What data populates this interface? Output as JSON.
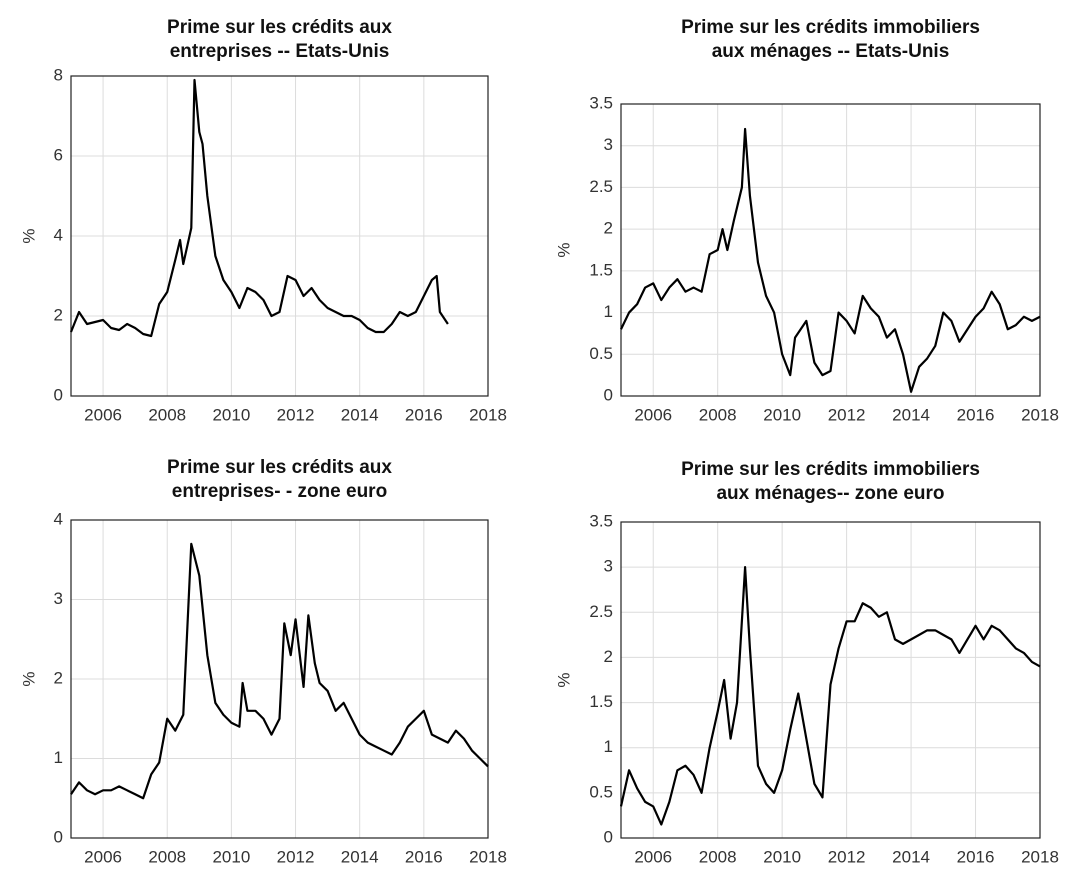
{
  "chart_data": [
    {
      "type": "line",
      "title": [
        "Prime sur les crédits aux",
        "entreprises -- Etats-Unis"
      ],
      "ylabel": "%",
      "color": "#000000",
      "grid": true,
      "xlim": [
        2005,
        2018
      ],
      "xticks": [
        2006,
        2008,
        2010,
        2012,
        2014,
        2016,
        2018
      ],
      "ylim": [
        0,
        8
      ],
      "yticks": [
        0,
        2,
        4,
        6,
        8
      ],
      "x": [
        2005,
        2005.25,
        2005.5,
        2005.75,
        2006,
        2006.25,
        2006.5,
        2006.75,
        2007,
        2007.25,
        2007.5,
        2007.75,
        2008,
        2008.25,
        2008.4,
        2008.5,
        2008.75,
        2008.85,
        2009,
        2009.1,
        2009.25,
        2009.5,
        2009.75,
        2010,
        2010.25,
        2010.5,
        2010.75,
        2011,
        2011.25,
        2011.5,
        2011.75,
        2012,
        2012.25,
        2012.5,
        2012.75,
        2013,
        2013.25,
        2013.5,
        2013.75,
        2014,
        2014.25,
        2014.5,
        2014.75,
        2015,
        2015.25,
        2015.5,
        2015.75,
        2016,
        2016.25,
        2016.4,
        2016.5,
        2016.75
      ],
      "values": [
        1.6,
        2.1,
        1.8,
        1.85,
        1.9,
        1.7,
        1.65,
        1.8,
        1.7,
        1.55,
        1.5,
        2.3,
        2.6,
        3.4,
        3.9,
        3.3,
        4.2,
        7.9,
        6.6,
        6.3,
        5.0,
        3.5,
        2.9,
        2.6,
        2.2,
        2.7,
        2.6,
        2.4,
        2.0,
        2.1,
        3.0,
        2.9,
        2.5,
        2.7,
        2.4,
        2.2,
        2.1,
        2.0,
        2.0,
        1.9,
        1.7,
        1.6,
        1.6,
        1.8,
        2.1,
        2.0,
        2.1,
        2.5,
        2.9,
        3.0,
        2.1,
        1.8
      ]
    },
    {
      "type": "line",
      "title": [
        "Prime sur les crédits immobiliers",
        "aux ménages -- Etats-Unis"
      ],
      "ylabel": "%",
      "color": "#000000",
      "grid": true,
      "xlim": [
        2005,
        2018
      ],
      "xticks": [
        2006,
        2008,
        2010,
        2012,
        2014,
        2016,
        2018
      ],
      "ylim": [
        0,
        3.5
      ],
      "yticks": [
        0,
        0.5,
        1,
        1.5,
        2,
        2.5,
        3,
        3.5
      ],
      "x": [
        2005,
        2005.25,
        2005.5,
        2005.75,
        2006,
        2006.25,
        2006.5,
        2006.75,
        2007,
        2007.25,
        2007.5,
        2007.75,
        2008,
        2008.15,
        2008.3,
        2008.5,
        2008.75,
        2008.85,
        2009,
        2009.25,
        2009.5,
        2009.75,
        2010,
        2010.25,
        2010.4,
        2010.75,
        2011,
        2011.25,
        2011.5,
        2011.75,
        2012,
        2012.25,
        2012.5,
        2012.75,
        2013,
        2013.25,
        2013.5,
        2013.75,
        2014,
        2014.25,
        2014.5,
        2014.75,
        2015,
        2015.25,
        2015.5,
        2015.75,
        2016,
        2016.25,
        2016.5,
        2016.75,
        2017,
        2017.25,
        2017.5,
        2017.75,
        2018
      ],
      "values": [
        0.8,
        1.0,
        1.1,
        1.3,
        1.35,
        1.15,
        1.3,
        1.4,
        1.25,
        1.3,
        1.25,
        1.7,
        1.75,
        2.0,
        1.75,
        2.1,
        2.5,
        3.2,
        2.4,
        1.6,
        1.2,
        1.0,
        0.5,
        0.25,
        0.7,
        0.9,
        0.4,
        0.25,
        0.3,
        1.0,
        0.9,
        0.75,
        1.2,
        1.05,
        0.95,
        0.7,
        0.8,
        0.5,
        0.05,
        0.35,
        0.45,
        0.6,
        1.0,
        0.9,
        0.65,
        0.8,
        0.95,
        1.05,
        1.25,
        1.1,
        0.8,
        0.85,
        0.95,
        0.9,
        0.95
      ]
    },
    {
      "type": "line",
      "title": [
        "Prime sur les crédits aux",
        "entreprises- - zone euro"
      ],
      "ylabel": "%",
      "color": "#000000",
      "grid": true,
      "xlim": [
        2005,
        2018
      ],
      "xticks": [
        2006,
        2008,
        2010,
        2012,
        2014,
        2016,
        2018
      ],
      "ylim": [
        0,
        4
      ],
      "yticks": [
        0,
        1,
        2,
        3,
        4
      ],
      "x": [
        2005,
        2005.25,
        2005.5,
        2005.75,
        2006,
        2006.25,
        2006.5,
        2006.75,
        2007,
        2007.25,
        2007.5,
        2007.75,
        2008,
        2008.25,
        2008.5,
        2008.75,
        2009,
        2009.25,
        2009.5,
        2009.75,
        2010,
        2010.25,
        2010.35,
        2010.5,
        2010.75,
        2011,
        2011.25,
        2011.5,
        2011.65,
        2011.85,
        2012,
        2012.25,
        2012.4,
        2012.6,
        2012.75,
        2013,
        2013.25,
        2013.5,
        2013.75,
        2014,
        2014.25,
        2014.5,
        2014.75,
        2015,
        2015.25,
        2015.5,
        2015.75,
        2016,
        2016.25,
        2016.5,
        2016.75,
        2017,
        2017.25,
        2017.5,
        2017.75,
        2018
      ],
      "values": [
        0.55,
        0.7,
        0.6,
        0.55,
        0.6,
        0.6,
        0.65,
        0.6,
        0.55,
        0.5,
        0.8,
        0.95,
        1.5,
        1.35,
        1.55,
        3.7,
        3.3,
        2.3,
        1.7,
        1.55,
        1.45,
        1.4,
        1.95,
        1.6,
        1.6,
        1.5,
        1.3,
        1.5,
        2.7,
        2.3,
        2.75,
        1.9,
        2.8,
        2.2,
        1.95,
        1.85,
        1.6,
        1.7,
        1.5,
        1.3,
        1.2,
        1.15,
        1.1,
        1.05,
        1.2,
        1.4,
        1.5,
        1.6,
        1.3,
        1.25,
        1.2,
        1.35,
        1.25,
        1.1,
        1.0,
        0.9
      ]
    },
    {
      "type": "line",
      "title": [
        "Prime sur les crédits immobiliers",
        "aux ménages-- zone euro"
      ],
      "ylabel": "%",
      "color": "#000000",
      "grid": true,
      "xlim": [
        2005,
        2018
      ],
      "xticks": [
        2006,
        2008,
        2010,
        2012,
        2014,
        2016,
        2018
      ],
      "ylim": [
        0,
        3.5
      ],
      "yticks": [
        0,
        0.5,
        1,
        1.5,
        2,
        2.5,
        3,
        3.5
      ],
      "x": [
        2005,
        2005.25,
        2005.5,
        2005.75,
        2006,
        2006.25,
        2006.5,
        2006.75,
        2007,
        2007.25,
        2007.5,
        2007.75,
        2008,
        2008.2,
        2008.4,
        2008.6,
        2008.85,
        2009,
        2009.25,
        2009.5,
        2009.75,
        2010,
        2010.25,
        2010.5,
        2010.75,
        2011,
        2011.25,
        2011.5,
        2011.75,
        2012,
        2012.25,
        2012.5,
        2012.75,
        2013,
        2013.25,
        2013.5,
        2013.75,
        2014,
        2014.25,
        2014.5,
        2014.75,
        2015,
        2015.25,
        2015.5,
        2015.75,
        2016,
        2016.25,
        2016.5,
        2016.75,
        2017,
        2017.25,
        2017.5,
        2017.75,
        2018
      ],
      "values": [
        0.35,
        0.75,
        0.55,
        0.4,
        0.35,
        0.15,
        0.4,
        0.75,
        0.8,
        0.7,
        0.5,
        1.0,
        1.4,
        1.75,
        1.1,
        1.5,
        3.0,
        2.1,
        0.8,
        0.6,
        0.5,
        0.75,
        1.2,
        1.6,
        1.1,
        0.6,
        0.45,
        1.7,
        2.1,
        2.4,
        2.4,
        2.6,
        2.55,
        2.45,
        2.5,
        2.2,
        2.15,
        2.2,
        2.25,
        2.3,
        2.3,
        2.25,
        2.2,
        2.05,
        2.2,
        2.35,
        2.2,
        2.35,
        2.3,
        2.2,
        2.1,
        2.05,
        1.95,
        1.9
      ]
    }
  ]
}
